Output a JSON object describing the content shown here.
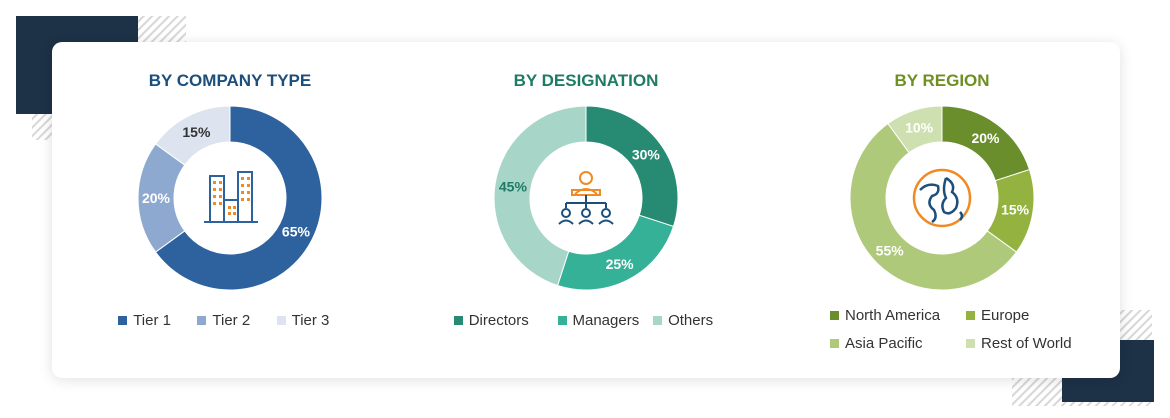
{
  "chart_data": [
    {
      "type": "pie",
      "title": "BY COMPANY TYPE",
      "title_color": "#1d4f7c",
      "categories": [
        "Tier 1",
        "Tier 2",
        "Tier 3"
      ],
      "values": [
        65,
        20,
        15
      ],
      "labels": [
        "65%",
        "20%",
        "15%"
      ],
      "colors": [
        "#2e629e",
        "#8ea9cf",
        "#dde4ef"
      ],
      "label_colors": [
        "#ffffff",
        "#ffffff",
        "#333333"
      ],
      "legend_position": "bottom",
      "center_icon": "buildings-icon"
    },
    {
      "type": "pie",
      "title": "BY DESIGNATION",
      "title_color": "#1f7a66",
      "categories": [
        "Directors",
        "Managers",
        "Others"
      ],
      "values": [
        30,
        25,
        45
      ],
      "labels": [
        "30%",
        "25%",
        "45%"
      ],
      "colors": [
        "#278a73",
        "#35b197",
        "#a7d5c8"
      ],
      "label_colors": [
        "#ffffff",
        "#ffffff",
        "#1f7a66"
      ],
      "legend_position": "bottom",
      "center_icon": "team-hierarchy-icon"
    },
    {
      "type": "pie",
      "title": "BY REGION",
      "title_color": "#6f8f22",
      "categories": [
        "North America",
        "Europe",
        "Asia Pacific",
        "Rest of World"
      ],
      "values": [
        20,
        15,
        55,
        10
      ],
      "labels": [
        "20%",
        "15%",
        "55%",
        "10%"
      ],
      "colors": [
        "#6b8e2c",
        "#93b240",
        "#aec97a",
        "#cfe0b0"
      ],
      "label_colors": [
        "#ffffff",
        "#ffffff",
        "#ffffff",
        "#ffffff"
      ],
      "legend_position": "bottom",
      "center_icon": "globe-icon"
    }
  ]
}
